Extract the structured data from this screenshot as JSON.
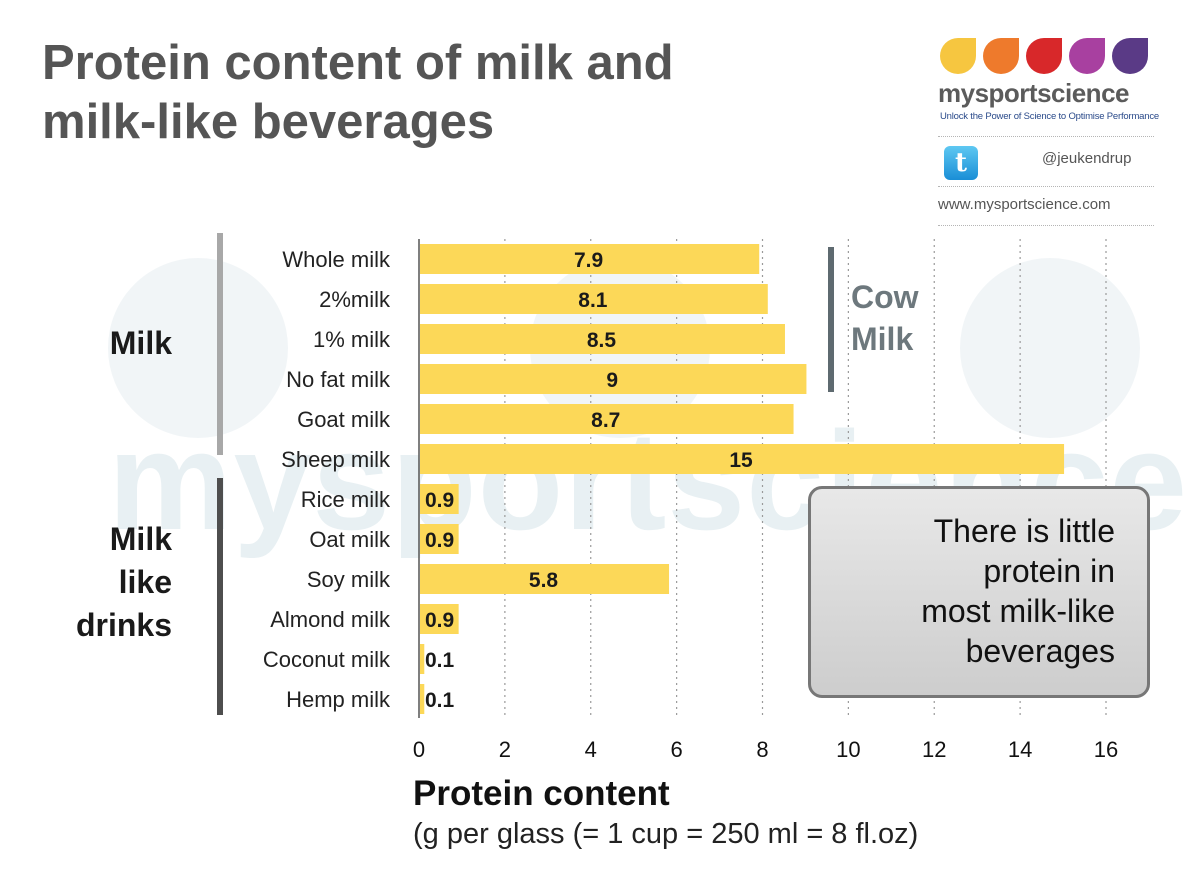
{
  "title": {
    "line1": "Protein content of milk and",
    "line2": "milk-like beverages"
  },
  "brand": {
    "name": "mysportscience",
    "tagline": "Unlock the Power of Science to Optimise Performance",
    "twitter_handle": "@jeukendrup",
    "website": "www.mysportscience.com",
    "drop_colors": [
      "#f6c640",
      "#ee7a2c",
      "#d8282a",
      "#a840a0",
      "#5a3a86"
    ],
    "watermark_text": "mysportscience"
  },
  "groups": {
    "milk": "Milk",
    "milk_like": {
      "line1": "Milk",
      "line2": "like",
      "line3": "drinks"
    }
  },
  "cow_milk": {
    "line1": "Cow",
    "line2": "Milk"
  },
  "callout": {
    "line1": "There is little",
    "line2": "protein in",
    "line3": "most milk-like",
    "line4": "beverages"
  },
  "chart_data": {
    "type": "bar",
    "orientation": "horizontal",
    "categories": [
      "Whole milk",
      "2%milk",
      "1% milk",
      "No fat milk",
      "Goat milk",
      "Sheep milk",
      "Rice milk",
      "Oat milk",
      "Soy milk",
      "Almond milk",
      "Coconut milk",
      "Hemp milk"
    ],
    "values": [
      7.9,
      8.1,
      8.5,
      9,
      8.7,
      15,
      0.9,
      0.9,
      5.8,
      0.9,
      0.1,
      0.1
    ],
    "value_labels": [
      "7.9",
      "8.1",
      "8.5",
      "9",
      "8.7",
      "15",
      "0.9",
      "0.9",
      "5.8",
      "0.9",
      "0.1",
      "0.1"
    ],
    "xlabel": "Protein content",
    "xlabel_sub": "(g per glass (= 1 cup = 250 ml = 8 fl.oz)",
    "xlim": [
      0,
      16
    ],
    "xticks": [
      0,
      2,
      4,
      6,
      8,
      10,
      12,
      14,
      16
    ],
    "grid": "vertical dotted",
    "bar_color": "#fcd858"
  }
}
